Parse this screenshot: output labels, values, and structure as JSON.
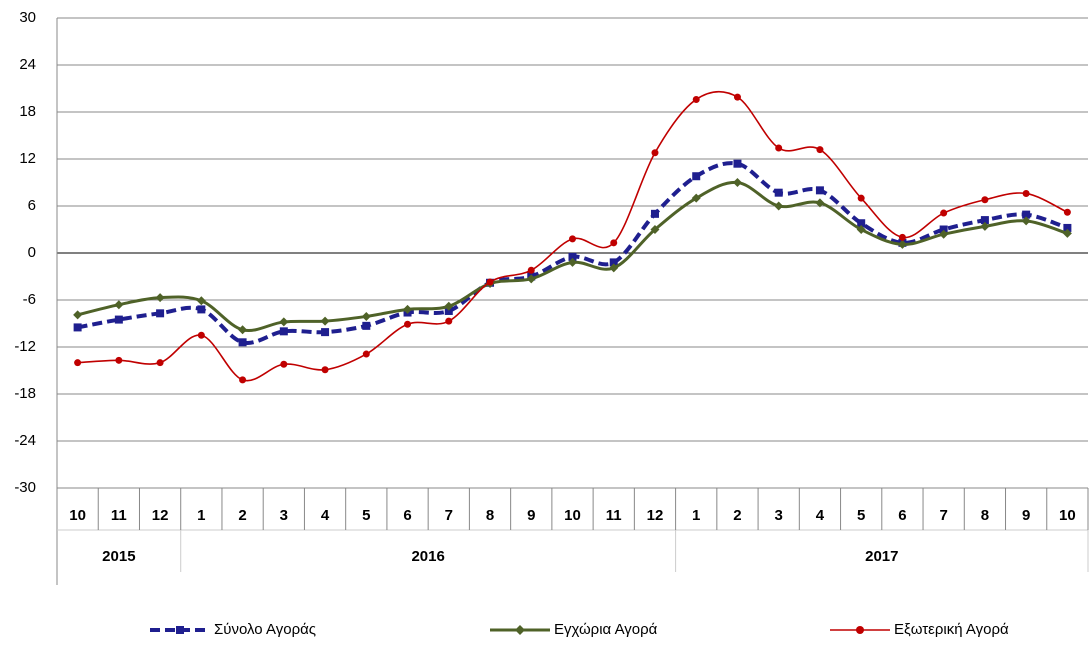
{
  "chart_data": {
    "type": "line",
    "categories": [
      "10",
      "11",
      "12",
      "1",
      "2",
      "3",
      "4",
      "5",
      "6",
      "7",
      "8",
      "9",
      "10",
      "11",
      "12",
      "1",
      "2",
      "3",
      "4",
      "5",
      "6",
      "7",
      "8",
      "9",
      "10"
    ],
    "groups": [
      {
        "label": "2015",
        "span": 3
      },
      {
        "label": "2016",
        "span": 12
      },
      {
        "label": "2017",
        "span": 10
      }
    ],
    "series": [
      {
        "name": "Σύνολο Αγοράς",
        "color": "#1f1f8f",
        "marker": "square",
        "dash": true,
        "values": [
          -9.5,
          -8.5,
          -7.7,
          -7.2,
          -11.4,
          -10,
          -10.1,
          -9.3,
          -7.6,
          -7.4,
          -3.8,
          -3,
          -0.5,
          -1.2,
          5,
          9.8,
          11.4,
          7.7,
          8,
          3.8,
          1.3,
          3,
          4.2,
          4.9,
          3.2
        ]
      },
      {
        "name": "Εγχώρια Αγορά",
        "color": "#4f6228",
        "marker": "diamond",
        "dash": false,
        "values": [
          -7.9,
          -6.6,
          -5.7,
          -6.1,
          -9.8,
          -8.8,
          -8.7,
          -8.1,
          -7.2,
          -6.8,
          -3.9,
          -3.3,
          -1.2,
          -1.9,
          3,
          7,
          9,
          6,
          6.4,
          3,
          1.1,
          2.4,
          3.4,
          4.1,
          2.5
        ]
      },
      {
        "name": "Εξωτερική Αγορά",
        "color": "#c00000",
        "marker": "circle",
        "dash": false,
        "values": [
          -14,
          -13.7,
          -14,
          -10.5,
          -16.2,
          -14.2,
          -14.9,
          -12.9,
          -9.1,
          -8.7,
          -3.7,
          -2.2,
          1.8,
          1.3,
          12.8,
          19.6,
          19.9,
          13.4,
          13.2,
          7,
          2,
          5.1,
          6.8,
          7.6,
          5.2
        ]
      }
    ],
    "ylim": [
      -30,
      30
    ],
    "yticks": [
      -30,
      -24,
      -18,
      -12,
      -6,
      0,
      6,
      12,
      18,
      24,
      30
    ],
    "grid": true,
    "legend": "bottom"
  }
}
